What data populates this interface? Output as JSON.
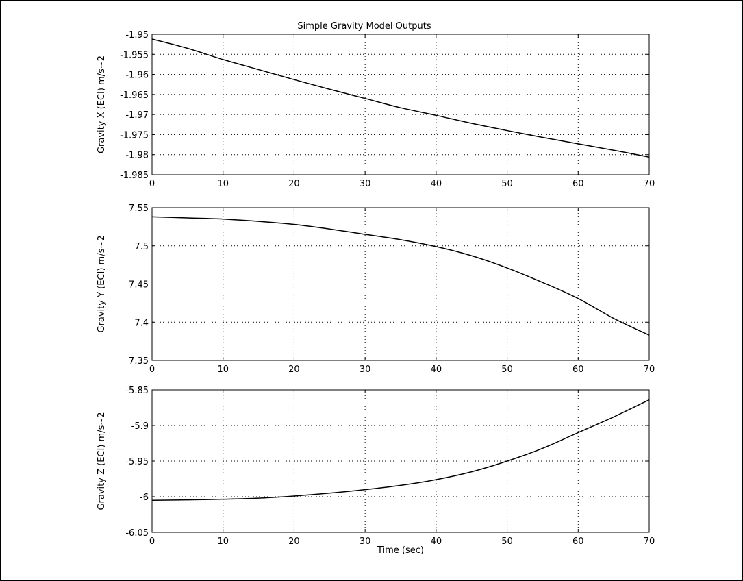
{
  "figure": {
    "title": "Simple Gravity Model Outputs",
    "xlabel": "Time (sec)"
  },
  "chart_data": [
    {
      "type": "line",
      "title": "Simple Gravity Model Outputs",
      "xlabel": "",
      "ylabel": "Gravity X (ECI) m/s~2",
      "xlim": [
        0,
        70
      ],
      "ylim": [
        -1.985,
        -1.95
      ],
      "xticks": [
        "0",
        "10",
        "20",
        "30",
        "40",
        "50",
        "60",
        "70"
      ],
      "xtick_values": [
        0,
        10,
        20,
        30,
        40,
        50,
        60,
        70
      ],
      "yticks": [
        "-1.95",
        "-1.955",
        "-1.96",
        "-1.965",
        "-1.97",
        "-1.975",
        "-1.98",
        "-1.985"
      ],
      "ytick_values": [
        -1.95,
        -1.955,
        -1.96,
        -1.965,
        -1.97,
        -1.975,
        -1.98,
        -1.985
      ],
      "grid": true,
      "series": [
        {
          "x": [
            0,
            5,
            10,
            15,
            20,
            25,
            30,
            35,
            40,
            45,
            50,
            55,
            60,
            65,
            70
          ],
          "y": [
            -1.9512,
            -1.9535,
            -1.9563,
            -1.9588,
            -1.9613,
            -1.9637,
            -1.966,
            -1.9683,
            -1.9702,
            -1.9722,
            -1.974,
            -1.9757,
            -1.9773,
            -1.9789,
            -1.9806
          ]
        }
      ]
    },
    {
      "type": "line",
      "title": "",
      "xlabel": "",
      "ylabel": "Gravity Y (ECI) m/s~2",
      "xlim": [
        0,
        70
      ],
      "ylim": [
        7.35,
        7.55
      ],
      "xticks": [
        "0",
        "10",
        "20",
        "30",
        "40",
        "50",
        "60",
        "70"
      ],
      "xtick_values": [
        0,
        10,
        20,
        30,
        40,
        50,
        60,
        70
      ],
      "yticks": [
        "7.55",
        "7.5",
        "7.45",
        "7.4",
        "7.35"
      ],
      "ytick_values": [
        7.55,
        7.5,
        7.45,
        7.4,
        7.35
      ],
      "grid": true,
      "series": [
        {
          "x": [
            0,
            5,
            10,
            15,
            20,
            25,
            30,
            35,
            40,
            45,
            50,
            55,
            60,
            65,
            70
          ],
          "y": [
            7.538,
            7.5365,
            7.535,
            7.532,
            7.528,
            7.522,
            7.515,
            7.508,
            7.499,
            7.487,
            7.471,
            7.452,
            7.431,
            7.405,
            7.383
          ]
        }
      ]
    },
    {
      "type": "line",
      "title": "",
      "xlabel": "Time (sec)",
      "ylabel": "Gravity Z (ECI) m/s~2",
      "xlim": [
        0,
        70
      ],
      "ylim": [
        -6.05,
        -5.85
      ],
      "xticks": [
        "0",
        "10",
        "20",
        "30",
        "40",
        "50",
        "60",
        "70"
      ],
      "xtick_values": [
        0,
        10,
        20,
        30,
        40,
        50,
        60,
        70
      ],
      "yticks": [
        "-5.85",
        "-5.9",
        "-5.95",
        "-6",
        "-6.05"
      ],
      "ytick_values": [
        -5.85,
        -5.9,
        -5.95,
        -6,
        -6.05
      ],
      "grid": true,
      "series": [
        {
          "x": [
            0,
            5,
            10,
            15,
            20,
            25,
            30,
            35,
            40,
            45,
            50,
            55,
            60,
            65,
            70
          ],
          "y": [
            -6.005,
            -6.0045,
            -6.0035,
            -6.002,
            -5.999,
            -5.995,
            -5.99,
            -5.984,
            -5.976,
            -5.965,
            -5.95,
            -5.932,
            -5.91,
            -5.888,
            -5.864
          ]
        }
      ]
    }
  ]
}
